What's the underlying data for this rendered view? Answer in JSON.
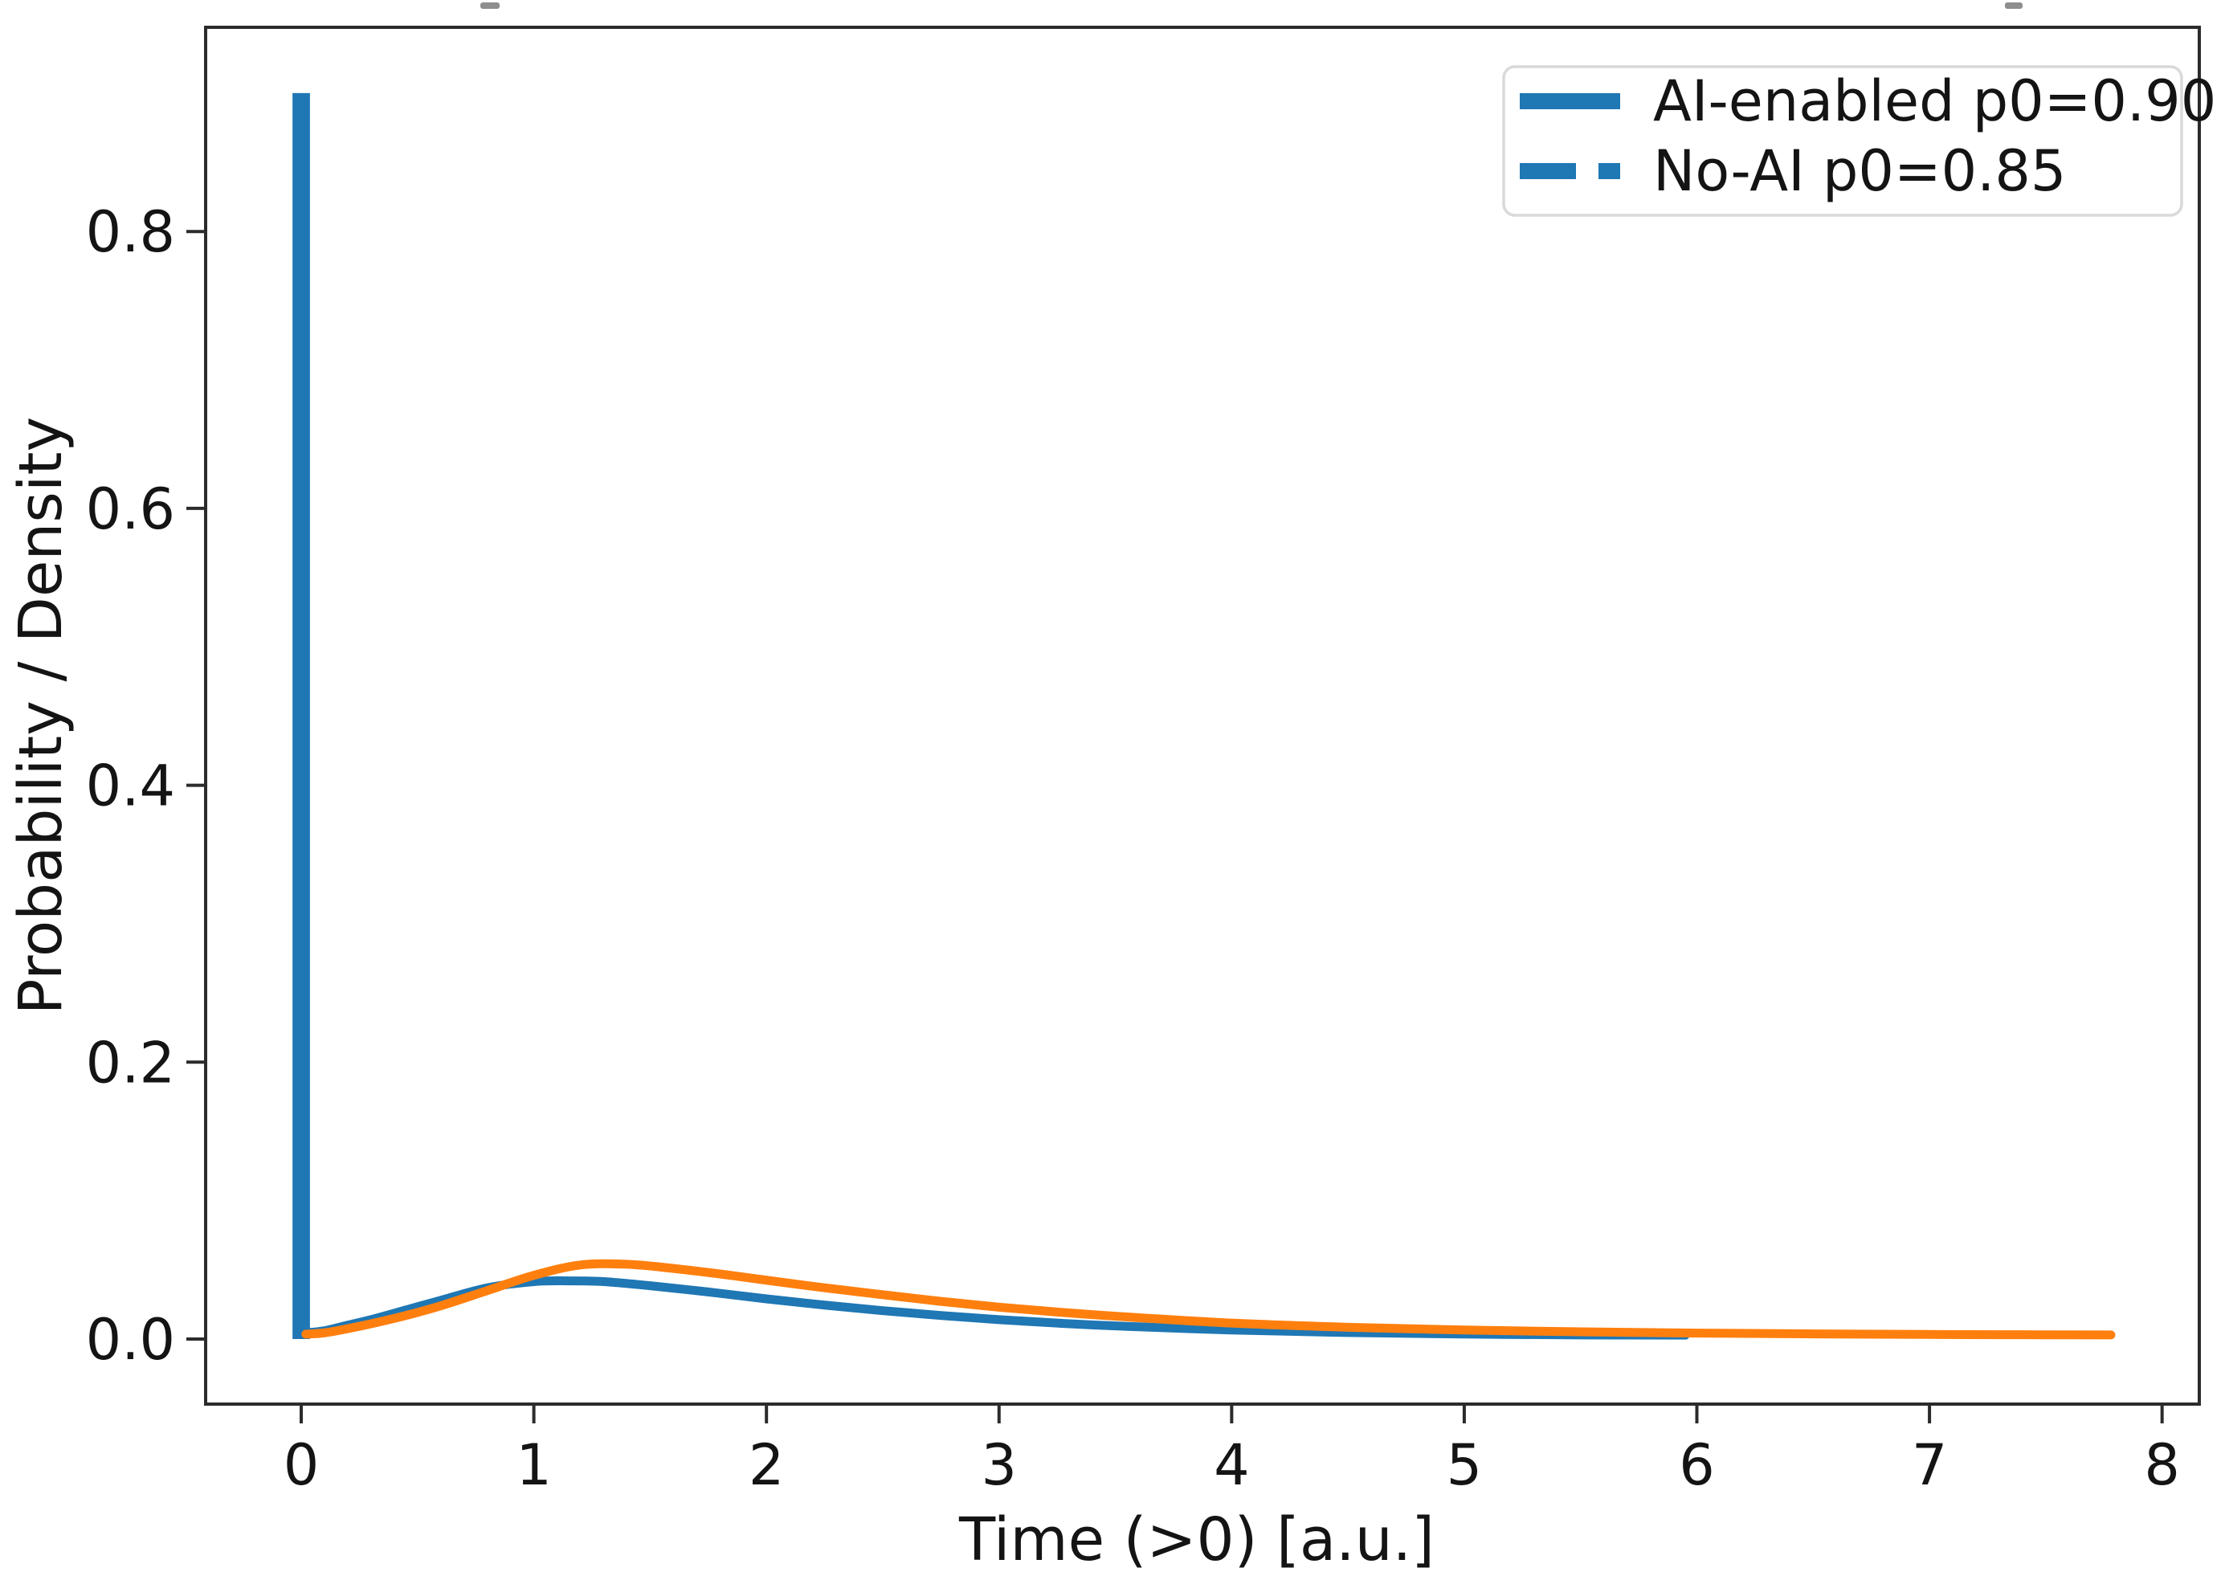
{
  "chart_data": {
    "type": "mixed",
    "subtype": "bar-at-zero-plus-density-lines",
    "title": "",
    "xlabel": "Time (>0) [a.u.]",
    "ylabel": "Probability / Density",
    "xlim": [
      -0.411,
      8.16
    ],
    "ylim": [
      -0.047,
      0.9475
    ],
    "grid": false,
    "x_ticks": {
      "values": [
        0,
        1,
        2,
        3,
        4,
        5,
        6,
        7,
        8
      ],
      "labels": [
        "0",
        "1",
        "2",
        "3",
        "4",
        "5",
        "6",
        "7",
        "8"
      ]
    },
    "y_ticks": {
      "values": [
        0.0,
        0.2,
        0.4,
        0.6,
        0.8
      ],
      "labels": [
        "0.0",
        "0.2",
        "0.4",
        "0.6",
        "0.8"
      ]
    },
    "colors": {
      "blue": "#1f77b4",
      "orange": "#ff7f0e",
      "axis": "#2b2b2b",
      "legend_border": "#d9d9d9",
      "legend_fill": "#ffffff"
    },
    "bar": {
      "x": 0,
      "width": 0.075,
      "height": 0.9,
      "color": "#1f77b4"
    },
    "series": [
      {
        "name": "curve-blue",
        "color": "#1f77b4",
        "x": [
          0.02,
          0.1,
          0.2,
          0.3,
          0.45,
          0.6,
          0.8,
          1.0,
          1.15,
          1.3,
          1.5,
          1.75,
          2.0,
          2.25,
          2.5,
          2.75,
          3.0,
          3.25,
          3.5,
          4.0,
          4.5,
          5.0,
          5.5,
          5.95
        ],
        "y": [
          0.0045,
          0.006,
          0.01,
          0.014,
          0.021,
          0.028,
          0.037,
          0.0415,
          0.042,
          0.0415,
          0.0385,
          0.034,
          0.029,
          0.0245,
          0.0205,
          0.017,
          0.014,
          0.0115,
          0.0095,
          0.0065,
          0.0047,
          0.0036,
          0.003,
          0.0028
        ]
      },
      {
        "name": "curve-orange",
        "color": "#ff7f0e",
        "x": [
          0.02,
          0.1,
          0.2,
          0.3,
          0.45,
          0.6,
          0.8,
          1.0,
          1.2,
          1.4,
          1.6,
          1.8,
          2.0,
          2.25,
          2.5,
          2.75,
          3.0,
          3.25,
          3.5,
          4.0,
          4.5,
          5.0,
          5.5,
          6.0,
          6.5,
          7.0,
          7.4,
          7.78
        ],
        "y": [
          0.0035,
          0.0045,
          0.0075,
          0.011,
          0.017,
          0.024,
          0.035,
          0.046,
          0.0535,
          0.054,
          0.051,
          0.047,
          0.0425,
          0.037,
          0.032,
          0.0272,
          0.023,
          0.0195,
          0.0165,
          0.0115,
          0.0085,
          0.0065,
          0.0052,
          0.0043,
          0.0037,
          0.0033,
          0.0031,
          0.003
        ]
      }
    ],
    "legend": {
      "position": "upper right",
      "entries": [
        {
          "label": "AI-enabled p0=0.90",
          "color": "#1f77b4",
          "style": "solid",
          "dash": ""
        },
        {
          "label": "No-AI p0=0.85",
          "color": "#1f77b4",
          "style": "dashed",
          "dash": "70 28 27 28"
        }
      ]
    }
  }
}
